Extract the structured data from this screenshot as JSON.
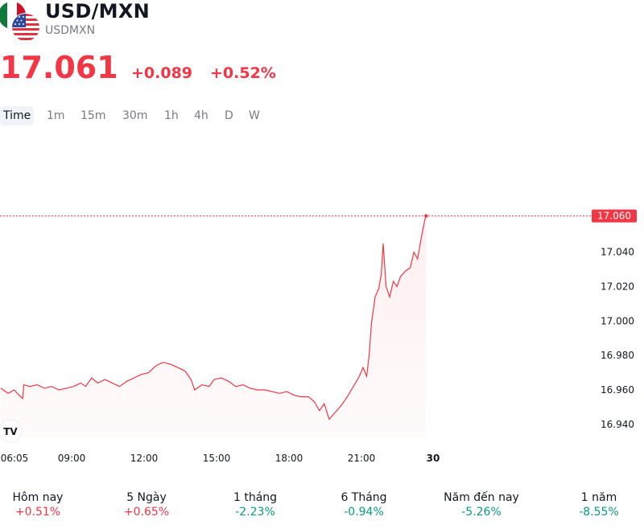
{
  "header": {
    "title": "USD/MXN",
    "symbol": "USDMXN",
    "flags": [
      "mexico-flag-icon",
      "united-states-flag-icon"
    ]
  },
  "quote": {
    "price": "17.061",
    "change": "+0.089",
    "change_percent": "+0.52%"
  },
  "tabs": [
    {
      "label": "Time",
      "active": true
    },
    {
      "label": "1m"
    },
    {
      "label": "15m"
    },
    {
      "label": "30m"
    },
    {
      "label": "1h"
    },
    {
      "label": "4h"
    },
    {
      "label": "D"
    },
    {
      "label": "W"
    }
  ],
  "chart_data": {
    "type": "area",
    "x_tick_labels": [
      "06:05",
      "09:00",
      "12:00",
      "15:00",
      "18:00",
      "21:00",
      "30"
    ],
    "y_tick_labels": [
      "17.040",
      "17.020",
      "17.000",
      "16.980",
      "16.960",
      "16.940"
    ],
    "ylim": [
      16.932,
      17.1
    ],
    "last_price_label": "17.060",
    "x_unit": "hours since 06:05",
    "points": [
      [
        0.0,
        16.961
      ],
      [
        0.3,
        16.958
      ],
      [
        0.55,
        16.96
      ],
      [
        0.75,
        16.957
      ],
      [
        0.9,
        16.955
      ],
      [
        0.95,
        16.963
      ],
      [
        1.2,
        16.962
      ],
      [
        1.5,
        16.963
      ],
      [
        1.8,
        16.961
      ],
      [
        2.1,
        16.962
      ],
      [
        2.4,
        16.96
      ],
      [
        2.7,
        16.961
      ],
      [
        3.0,
        16.962
      ],
      [
        3.3,
        16.964
      ],
      [
        3.5,
        16.962
      ],
      [
        3.75,
        16.967
      ],
      [
        4.0,
        16.964
      ],
      [
        4.3,
        16.966
      ],
      [
        4.6,
        16.964
      ],
      [
        4.9,
        16.962
      ],
      [
        5.2,
        16.965
      ],
      [
        5.5,
        16.967
      ],
      [
        5.8,
        16.969
      ],
      [
        6.1,
        16.97
      ],
      [
        6.4,
        16.974
      ],
      [
        6.7,
        16.976
      ],
      [
        7.0,
        16.975
      ],
      [
        7.3,
        16.973
      ],
      [
        7.6,
        16.971
      ],
      [
        7.85,
        16.966
      ],
      [
        8.0,
        16.96
      ],
      [
        8.3,
        16.963
      ],
      [
        8.6,
        16.962
      ],
      [
        8.8,
        16.966
      ],
      [
        9.1,
        16.967
      ],
      [
        9.4,
        16.965
      ],
      [
        9.7,
        16.962
      ],
      [
        10.0,
        16.963
      ],
      [
        10.3,
        16.961
      ],
      [
        10.6,
        16.96
      ],
      [
        10.9,
        16.96
      ],
      [
        11.2,
        16.959
      ],
      [
        11.5,
        16.958
      ],
      [
        11.8,
        16.959
      ],
      [
        12.1,
        16.957
      ],
      [
        12.4,
        16.956
      ],
      [
        12.7,
        16.956
      ],
      [
        12.95,
        16.953
      ],
      [
        13.15,
        16.948
      ],
      [
        13.35,
        16.952
      ],
      [
        13.55,
        16.943
      ],
      [
        13.8,
        16.947
      ],
      [
        14.05,
        16.951
      ],
      [
        14.3,
        16.956
      ],
      [
        14.55,
        16.962
      ],
      [
        14.8,
        16.968
      ],
      [
        14.95,
        16.973
      ],
      [
        15.1,
        16.968
      ],
      [
        15.2,
        16.98
      ],
      [
        15.3,
        16.999
      ],
      [
        15.45,
        17.014
      ],
      [
        15.6,
        17.019
      ],
      [
        15.7,
        17.027
      ],
      [
        15.78,
        17.045
      ],
      [
        15.9,
        17.02
      ],
      [
        16.05,
        17.014
      ],
      [
        16.2,
        17.023
      ],
      [
        16.35,
        17.02
      ],
      [
        16.5,
        17.026
      ],
      [
        16.7,
        17.029
      ],
      [
        16.9,
        17.031
      ],
      [
        17.05,
        17.04
      ],
      [
        17.2,
        17.036
      ],
      [
        17.35,
        17.048
      ],
      [
        17.5,
        17.059
      ],
      [
        17.55,
        17.061
      ]
    ]
  },
  "performance": [
    {
      "label": "Hôm nay",
      "value": "+0.51%",
      "direction": "up"
    },
    {
      "label": "5 Ngày",
      "value": "+0.65%",
      "direction": "up"
    },
    {
      "label": "1 tháng",
      "value": "-2.23%",
      "direction": "down"
    },
    {
      "label": "6 Tháng",
      "value": "-0.94%",
      "direction": "down"
    },
    {
      "label": "Năm đến nay",
      "value": "-5.26%",
      "direction": "down"
    },
    {
      "label": "1 năm",
      "value": "-8.55%",
      "direction": "down"
    }
  ],
  "colors": {
    "negative_accent": "#f23645",
    "positive_accent": "#089981",
    "muted_text": "#787b86"
  }
}
